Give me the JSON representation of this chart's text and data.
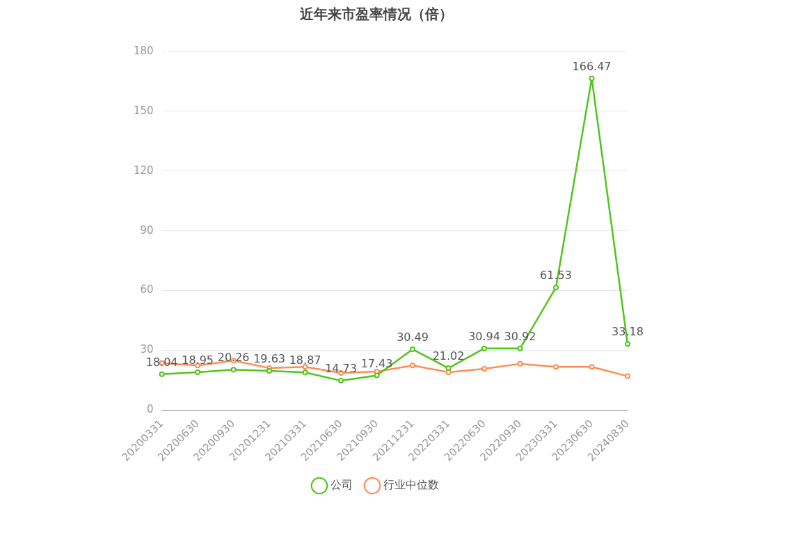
{
  "chart_data": {
    "type": "line",
    "title": "近年来市盈率情况（倍）",
    "categories": [
      "20200331",
      "20200630",
      "20200930",
      "20201231",
      "20210331",
      "20210630",
      "20210930",
      "20211231",
      "20220331",
      "20220630",
      "20220930",
      "20230331",
      "20230630",
      "20240830"
    ],
    "series": [
      {
        "name": "公司",
        "color": "#52c41a",
        "values": [
          18.04,
          18.95,
          20.26,
          19.63,
          18.87,
          14.73,
          17.43,
          30.49,
          21.02,
          30.94,
          30.92,
          61.53,
          166.47,
          33.18
        ],
        "value_labels": [
          "18.04",
          "18.95",
          "20.26",
          "19.63",
          "18.87",
          "14.73",
          "17.43",
          "30.49",
          "21.02",
          "30.94",
          "30.92",
          "61.53",
          "166.47",
          "33.18"
        ]
      },
      {
        "name": "行业中位数",
        "color": "#ff8c55",
        "values": [
          23.6,
          22.4,
          24.8,
          21.1,
          21.7,
          18.6,
          19.3,
          22.4,
          19.0,
          20.7,
          23.2,
          21.7,
          21.7,
          17.0
        ]
      }
    ],
    "ylim": [
      0,
      180
    ],
    "yticks": [
      0,
      30,
      60,
      90,
      120,
      150,
      180
    ],
    "grid": "y",
    "legend": "bottom",
    "marker": "circle",
    "line_style": "solid"
  }
}
